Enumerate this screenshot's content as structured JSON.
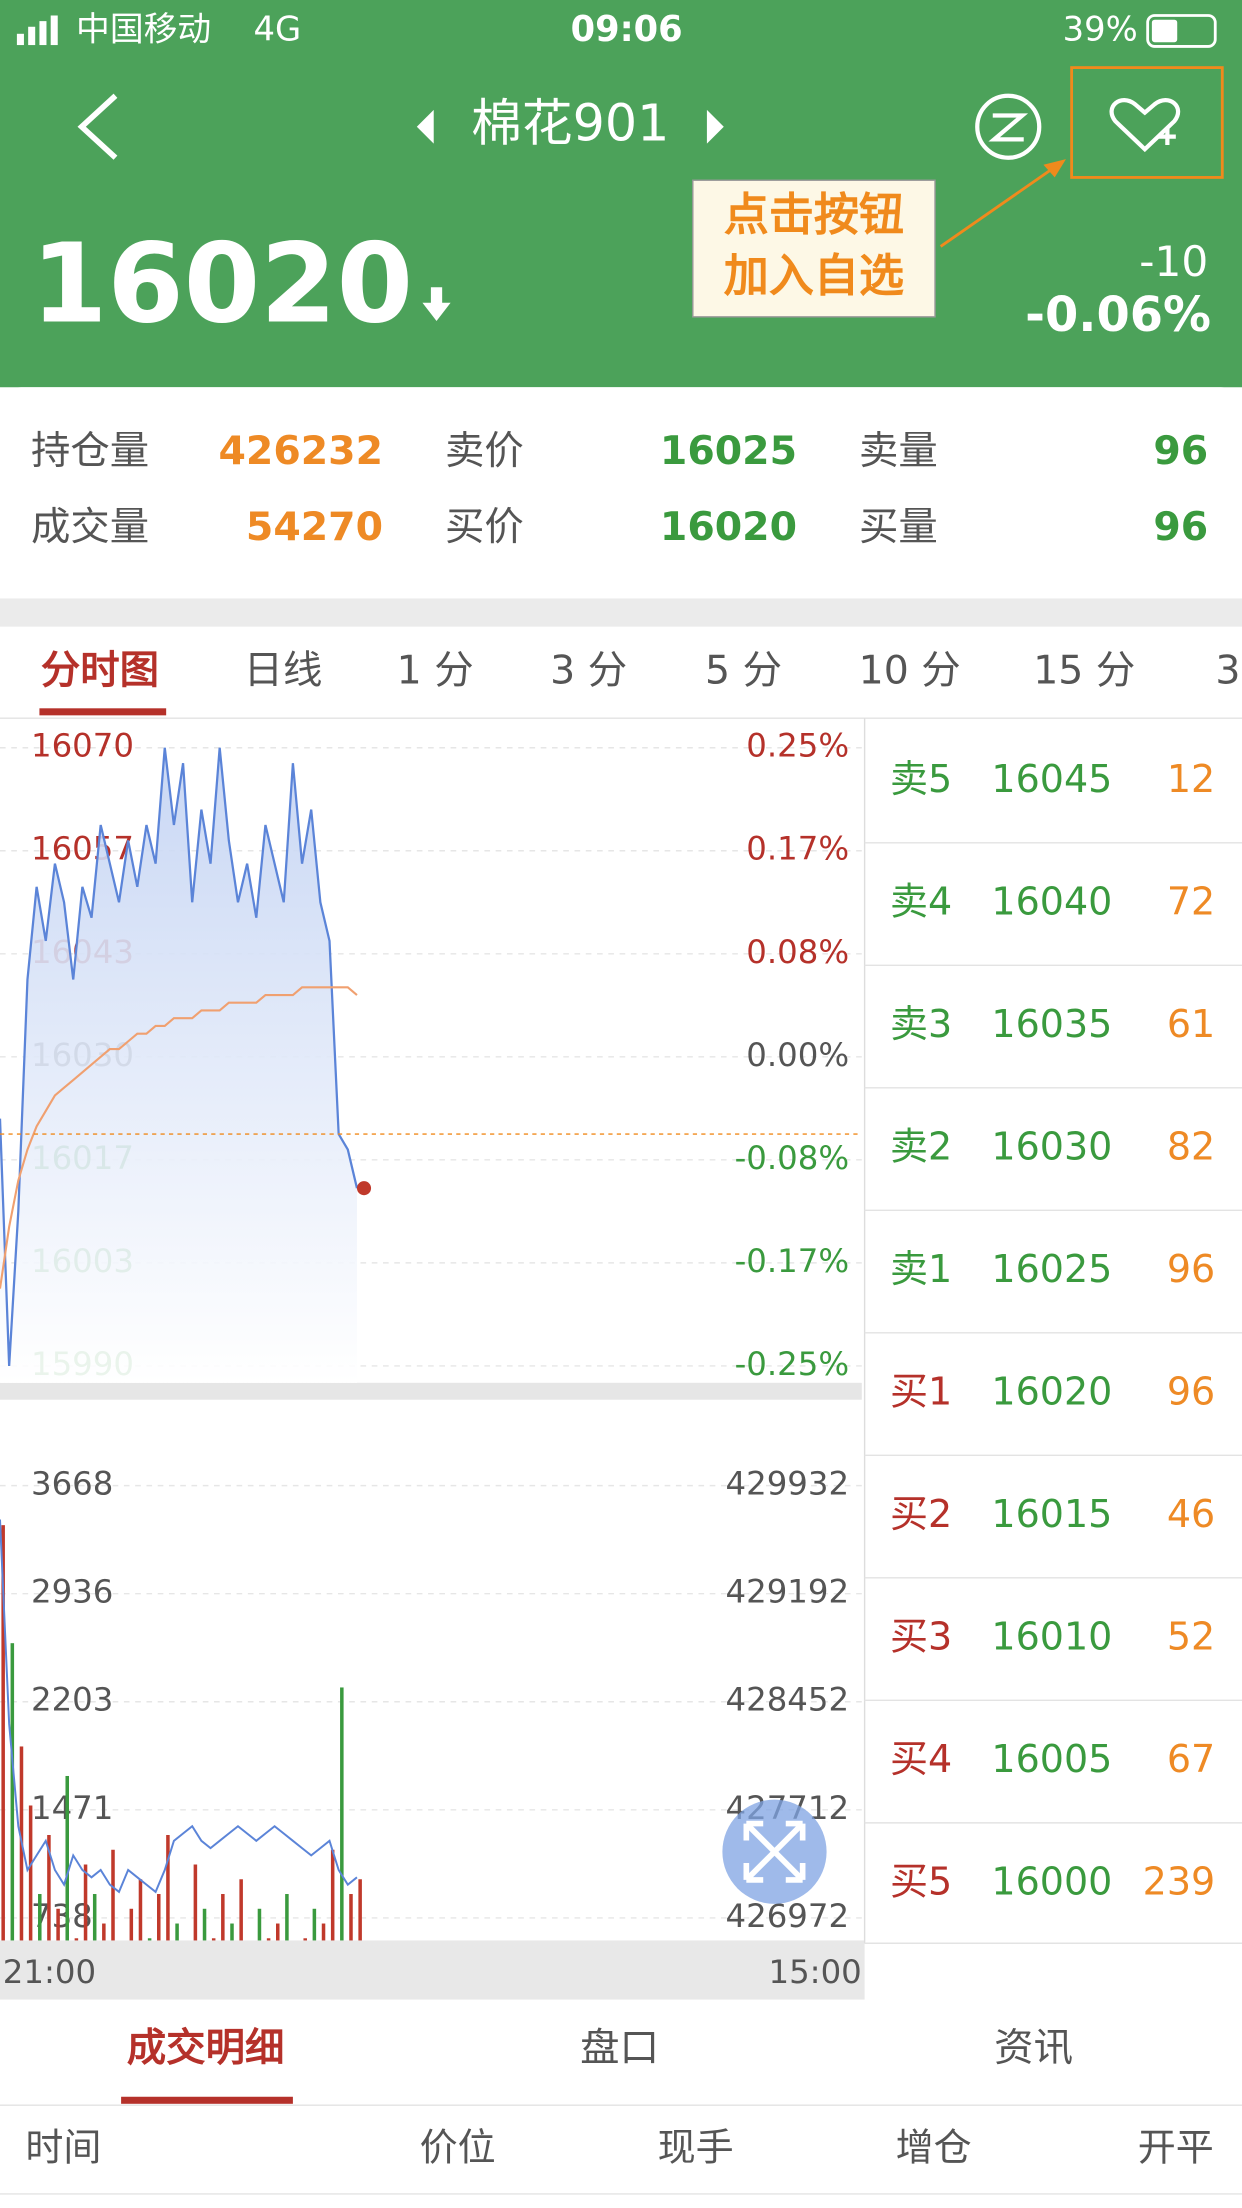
{
  "status": {
    "carrier": "中国移动",
    "network": "4G",
    "time": "09:06",
    "battery": "39%"
  },
  "header": {
    "title": "棉花901",
    "price": 16020,
    "change": -10,
    "change_pct": "-0.06%"
  },
  "annotation": {
    "lines": [
      "点击按钮",
      "加入自选"
    ]
  },
  "quote": {
    "rows": [
      [
        "持仓量",
        426232,
        "卖价",
        16025,
        "卖量",
        96
      ],
      [
        "成交量",
        54270,
        "买价",
        16020,
        "买量",
        96
      ]
    ]
  },
  "tabs": [
    "分时图",
    "日线",
    "1 分",
    "3 分",
    "5 分",
    "10 分",
    "15 分",
    "3"
  ],
  "intraday": {
    "type": "line",
    "yticks": [
      16070,
      16057,
      16043,
      16030,
      16017,
      16003,
      15990
    ],
    "pct_ticks": [
      "0.25%",
      "0.17%",
      "0.08%",
      "0.00%",
      "-0.08%",
      "-0.17%",
      "-0.25%"
    ],
    "price": [
      16022,
      15990,
      16010,
      16040,
      16052,
      16045,
      16055,
      16050,
      16040,
      16052,
      16048,
      16060,
      16055,
      16050,
      16058,
      16052,
      16060,
      16055,
      16070,
      16060,
      16068,
      16050,
      16062,
      16055,
      16070,
      16058,
      16050,
      16055,
      16048,
      16060,
      16055,
      16050,
      16068,
      16055,
      16062,
      16050,
      16045,
      16020,
      16018,
      16013
    ],
    "average": [
      16000,
      16008,
      16014,
      16018,
      16021,
      16023,
      16025,
      16026,
      16027,
      16028,
      16029,
      16030,
      16031,
      16031,
      16032,
      16033,
      16033,
      16034,
      16034,
      16035,
      16035,
      16035,
      16036,
      16036,
      16036,
      16037,
      16037,
      16037,
      16037,
      16038,
      16038,
      16038,
      16038,
      16039,
      16039,
      16039,
      16039,
      16039,
      16039,
      16038
    ],
    "vol_ticks": [
      3668,
      2936,
      2203,
      1471,
      738
    ],
    "oi_ticks": [
      429932,
      429192,
      428452,
      427712,
      426972
    ],
    "volume": [
      3400,
      2600,
      1900,
      1500,
      900,
      1300,
      800,
      1700,
      600,
      1100,
      900,
      700,
      1200,
      500,
      800,
      1000,
      600,
      900,
      1300,
      700,
      500,
      1100,
      800,
      600,
      900,
      700,
      1000,
      500,
      800,
      600,
      700,
      900,
      500,
      600,
      800,
      700,
      1200,
      2300,
      900,
      1000
    ],
    "open_interest": [
      429700,
      428300,
      427600,
      427300,
      427400,
      427500,
      427300,
      427200,
      427400,
      427300,
      427250,
      427300,
      427200,
      427150,
      427300,
      427250,
      427200,
      427150,
      427300,
      427500,
      427550,
      427600,
      427500,
      427450,
      427500,
      427550,
      427600,
      427550,
      427500,
      427550,
      427600,
      427550,
      427500,
      427450,
      427400,
      427450,
      427500,
      427300,
      427200,
      427250
    ],
    "x_labels": [
      "21:00",
      "15:00"
    ]
  },
  "orderbook": [
    [
      "卖5",
      16045,
      12
    ],
    [
      "卖4",
      16040,
      72
    ],
    [
      "卖3",
      16035,
      61
    ],
    [
      "卖2",
      16030,
      82
    ],
    [
      "卖1",
      16025,
      96
    ],
    [
      "买1",
      16020,
      96
    ],
    [
      "买2",
      16015,
      46
    ],
    [
      "买3",
      16010,
      52
    ],
    [
      "买4",
      16005,
      67
    ],
    [
      "买5",
      16000,
      239
    ]
  ],
  "bottom_tabs": [
    "成交明细",
    "盘口",
    "资讯"
  ],
  "columns": [
    "时间",
    "价位",
    "现手",
    "增仓",
    "开平"
  ]
}
